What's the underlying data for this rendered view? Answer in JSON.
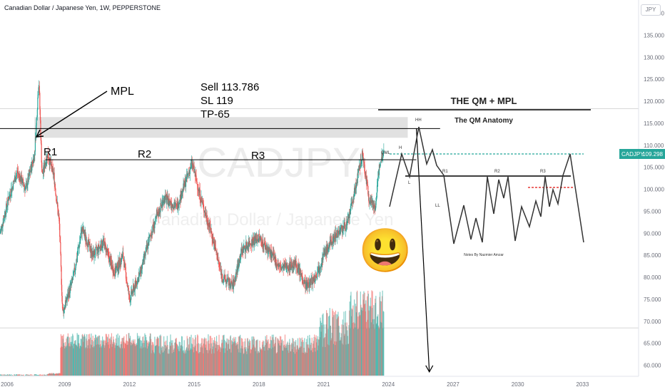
{
  "header": {
    "symbol_title": "Canadian Dollar / Japanese Yen, 1W, PEPPERSTONE",
    "currency": "JPY"
  },
  "watermark": {
    "ticker": "CADJPY,",
    "name": "Canadian Dollar / Japanese Yen"
  },
  "price_badge": {
    "ticker": "CADJPY",
    "price": "109.298",
    "color": "#26a69a"
  },
  "annotations": {
    "mpl": "MPL",
    "trade_lines": [
      "Sell 113.786",
      "SL 119",
      "TP-65"
    ],
    "resistances": [
      "R1",
      "R2",
      "R3"
    ]
  },
  "inset": {
    "title": "THE QM + MPL",
    "subtitle": "The QM Anatomy",
    "labels": {
      "hh": "HH",
      "h": "H",
      "qml": "QML",
      "l": "L",
      "ll": "LL",
      "r1": "R1",
      "r2": "R2",
      "r3": "R3"
    },
    "credit": "Notes By Nazmier Amzar"
  },
  "emoji": "😃",
  "colors": {
    "up": "#26a69a",
    "down": "#ef5350",
    "zone": "#d9d9d9",
    "qml_dash": "#26a69a",
    "red_dash": "#e53935"
  },
  "chart_data": {
    "type": "candlestick",
    "title": "Canadian Dollar / Japanese Yen, 1W, PEPPERSTONE",
    "x_ticks": [
      "2006",
      "2009",
      "2012",
      "2015",
      "2018",
      "2021",
      "2024",
      "2027",
      "2030",
      "2033"
    ],
    "y_ticks": [
      "140.000",
      "135.000",
      "130.000",
      "125.000",
      "120.000",
      "115.000",
      "110.000",
      "105.000",
      "100.000",
      "95.000",
      "90.000",
      "85.000",
      "80.000",
      "75.000",
      "70.000",
      "65.000",
      "60.000"
    ],
    "ylim": [
      57.5,
      143
    ],
    "xlim": [
      2006,
      2035.6
    ],
    "price_path": [
      [
        2006.0,
        90
      ],
      [
        2006.4,
        98
      ],
      [
        2006.8,
        104
      ],
      [
        2007.2,
        100
      ],
      [
        2007.6,
        108
      ],
      [
        2007.8,
        125
      ],
      [
        2007.95,
        103
      ],
      [
        2008.2,
        108
      ],
      [
        2008.5,
        103
      ],
      [
        2008.75,
        92
      ],
      [
        2008.9,
        72
      ],
      [
        2009.1,
        75
      ],
      [
        2009.4,
        80
      ],
      [
        2009.8,
        91
      ],
      [
        2010.3,
        85
      ],
      [
        2010.8,
        88
      ],
      [
        2011.3,
        81
      ],
      [
        2011.7,
        85
      ],
      [
        2012.0,
        75
      ],
      [
        2012.5,
        81
      ],
      [
        2013.0,
        90
      ],
      [
        2013.6,
        98
      ],
      [
        2014.2,
        96
      ],
      [
        2014.9,
        106
      ],
      [
        2015.3,
        98
      ],
      [
        2015.8,
        90
      ],
      [
        2016.3,
        80
      ],
      [
        2016.8,
        78
      ],
      [
        2017.2,
        86
      ],
      [
        2017.6,
        88
      ],
      [
        2018.0,
        89
      ],
      [
        2018.6,
        85
      ],
      [
        2019.0,
        82
      ],
      [
        2019.7,
        83
      ],
      [
        2020.2,
        78
      ],
      [
        2020.6,
        80
      ],
      [
        2021.0,
        85
      ],
      [
        2021.6,
        90
      ],
      [
        2022.1,
        92
      ],
      [
        2022.5,
        101
      ],
      [
        2022.8,
        108
      ],
      [
        2023.1,
        98
      ],
      [
        2023.4,
        96
      ],
      [
        2023.6,
        106
      ],
      [
        2023.8,
        109.3
      ]
    ],
    "last_price": 109.298,
    "levels": [
      {
        "name": "MPL",
        "y": 113.786
      },
      {
        "name": "resistance",
        "y": 106.7
      }
    ],
    "supply_zone": [
      111.7,
      116.4
    ],
    "horizontal_grid_levels": [
      118.3,
      68.5
    ],
    "target_arrow": {
      "from": [
        2025.3,
        113.786
      ],
      "to": [
        2025.9,
        58.5
      ]
    }
  }
}
